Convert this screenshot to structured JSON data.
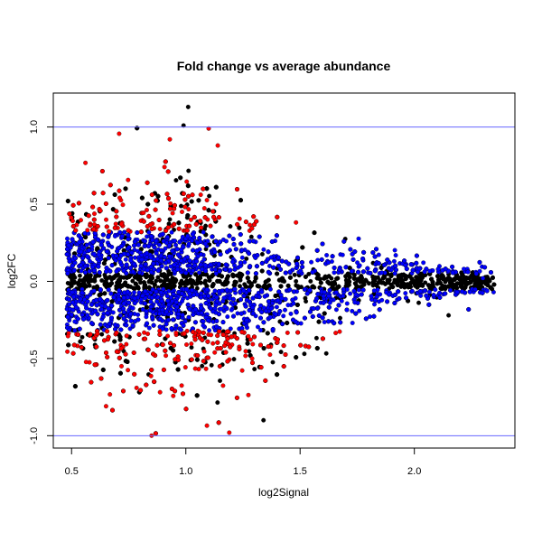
{
  "chart_data": {
    "type": "scatter",
    "title": "Fold change vs average abundance",
    "xlabel": "log2Signal",
    "ylabel": "log2FC",
    "xlim": [
      0.42,
      2.44
    ],
    "ylim": [
      -1.08,
      1.22
    ],
    "x_ticks": [
      0.5,
      1.0,
      1.5,
      2.0
    ],
    "x_tick_labels": [
      "0.5",
      "1.0",
      "1.5",
      "2.0"
    ],
    "y_ticks": [
      -1.0,
      -0.5,
      0.0,
      0.5,
      1.0
    ],
    "y_tick_labels": [
      "-1.0",
      "-0.5",
      "0.0",
      "0.5",
      "1.0"
    ],
    "reference_lines": [
      {
        "axis": "y",
        "value": 1.0,
        "color": "#6666ff"
      },
      {
        "axis": "y",
        "value": -1.0,
        "color": "#6666ff"
      }
    ],
    "colors": {
      "base": "#000000",
      "significant": "#0000ff",
      "large_change": "#ff0000"
    },
    "outliers": [
      {
        "x": 1.01,
        "y": 1.13,
        "color": "#000000"
      },
      {
        "x": 0.99,
        "y": 1.01,
        "color": "#000000"
      },
      {
        "x": 1.1,
        "y": 0.99,
        "color": "#ff0000"
      },
      {
        "x": 0.93,
        "y": 0.92,
        "color": "#ff0000"
      },
      {
        "x": 1.14,
        "y": 0.88,
        "color": "#ff0000"
      },
      {
        "x": 0.85,
        "y": -1.0,
        "color": "#ff0000"
      },
      {
        "x": 1.19,
        "y": -0.98,
        "color": "#ff0000"
      },
      {
        "x": 1.34,
        "y": -0.9,
        "color": "#000000"
      },
      {
        "x": 2.15,
        "y": -0.22,
        "color": "#000000"
      },
      {
        "x": 2.34,
        "y": -0.05,
        "color": "#000000"
      },
      {
        "x": 2.3,
        "y": 0.02,
        "color": "#0000ff"
      }
    ]
  }
}
